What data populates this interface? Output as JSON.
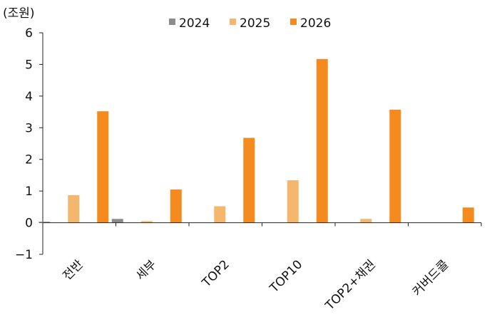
{
  "chart_data": {
    "type": "bar",
    "ylabel": "(조원)",
    "ylim": [
      -1,
      6
    ],
    "yticks": [
      -1,
      0,
      1,
      2,
      3,
      4,
      5,
      6
    ],
    "ytick_labels": [
      "−1",
      "0",
      "1",
      "2",
      "3",
      "4",
      "5",
      "6"
    ],
    "grid": false,
    "legend_position": "top-center",
    "categories": [
      "전반",
      "세부",
      "TOP2",
      "TOP10",
      "TOP2+채권",
      "커버드콜"
    ],
    "series": [
      {
        "name": "2024",
        "color": "#8c8c8c",
        "values": [
          0.03,
          0.12,
          0,
          0,
          0,
          0
        ]
      },
      {
        "name": "2025",
        "color": "#f4b76d",
        "values": [
          0.87,
          0.05,
          0.52,
          1.34,
          0.12,
          0
        ]
      },
      {
        "name": "2026",
        "color": "#f58a1f",
        "values": [
          3.52,
          1.05,
          2.68,
          5.17,
          3.57,
          0.48
        ]
      }
    ]
  }
}
